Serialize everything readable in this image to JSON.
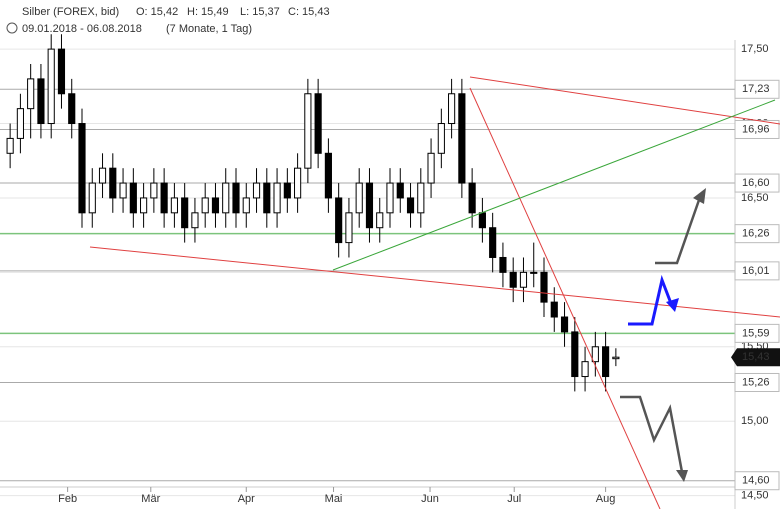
{
  "header": {
    "symbol": "Silber (FOREX, bid)",
    "quote": [
      "O: 15,42",
      "H: 15,49",
      "L: 15,37",
      "C: 15,43"
    ],
    "range": "09.01.2018 - 06.08.2018",
    "period": "(7 Monate, 1 Tag)"
  },
  "chart_data": {
    "type": "candlestick",
    "categories": [
      null,
      null,
      null,
      null,
      null,
      null,
      null,
      null,
      null,
      null,
      null,
      null,
      null,
      null,
      null,
      null,
      null,
      null,
      null,
      null,
      null,
      null,
      null,
      null,
      null,
      null,
      null,
      null,
      null,
      null,
      null,
      null,
      null,
      null,
      null,
      null,
      null,
      null,
      null,
      null,
      null,
      null,
      null,
      null,
      null,
      null,
      null,
      null,
      null,
      null,
      null,
      null,
      null,
      null,
      null,
      null,
      null,
      null,
      null,
      null
    ],
    "open": [
      16.8,
      16.9,
      17.1,
      17.3,
      17.0,
      17.5,
      17.2,
      17.0,
      16.4,
      16.6,
      16.7,
      16.5,
      16.6,
      16.4,
      16.5,
      16.6,
      16.4,
      16.5,
      16.3,
      16.4,
      16.5,
      16.4,
      16.6,
      16.4,
      16.5,
      16.6,
      16.4,
      16.6,
      16.5,
      16.7,
      17.2,
      16.8,
      16.5,
      16.2,
      16.4,
      16.6,
      16.3,
      16.4,
      16.6,
      16.5,
      16.4,
      16.6,
      16.8,
      17.0,
      17.2,
      16.6,
      16.4,
      16.3,
      16.1,
      16.0,
      15.9,
      16.0,
      16.0,
      15.8,
      15.7,
      15.6,
      15.3,
      15.4,
      15.5,
      15.42
    ],
    "high": [
      17.0,
      17.2,
      17.4,
      17.4,
      17.6,
      17.6,
      17.3,
      17.1,
      16.7,
      16.8,
      16.8,
      16.7,
      16.7,
      16.6,
      16.7,
      16.7,
      16.6,
      16.6,
      16.5,
      16.6,
      16.6,
      16.7,
      16.7,
      16.6,
      16.7,
      16.7,
      16.7,
      16.7,
      16.8,
      17.3,
      17.3,
      16.9,
      16.6,
      16.5,
      16.7,
      16.7,
      16.5,
      16.7,
      16.7,
      16.6,
      16.7,
      16.9,
      17.1,
      17.3,
      17.3,
      16.7,
      16.5,
      16.4,
      16.2,
      16.1,
      16.1,
      16.2,
      16.1,
      15.9,
      15.8,
      15.7,
      15.5,
      15.6,
      15.6,
      15.49
    ],
    "low": [
      16.7,
      16.8,
      16.9,
      16.9,
      16.9,
      17.1,
      16.9,
      16.3,
      16.3,
      16.5,
      16.4,
      16.4,
      16.3,
      16.3,
      16.4,
      16.3,
      16.3,
      16.2,
      16.2,
      16.3,
      16.3,
      16.3,
      16.3,
      16.3,
      16.4,
      16.3,
      16.3,
      16.4,
      16.4,
      16.6,
      16.7,
      16.4,
      16.1,
      16.1,
      16.3,
      16.2,
      16.2,
      16.3,
      16.4,
      16.3,
      16.3,
      16.5,
      16.7,
      16.9,
      16.5,
      16.3,
      16.2,
      16.0,
      15.9,
      15.8,
      15.8,
      15.9,
      15.7,
      15.6,
      15.5,
      15.2,
      15.2,
      15.3,
      15.2,
      15.37
    ],
    "close": [
      16.9,
      17.1,
      17.3,
      17.0,
      17.5,
      17.2,
      17.0,
      16.4,
      16.6,
      16.7,
      16.5,
      16.6,
      16.4,
      16.5,
      16.6,
      16.4,
      16.5,
      16.3,
      16.4,
      16.5,
      16.4,
      16.6,
      16.4,
      16.5,
      16.6,
      16.4,
      16.6,
      16.5,
      16.7,
      17.2,
      16.8,
      16.5,
      16.2,
      16.4,
      16.6,
      16.3,
      16.4,
      16.6,
      16.5,
      16.4,
      16.6,
      16.8,
      17.0,
      17.2,
      16.6,
      16.4,
      16.3,
      16.1,
      16.0,
      15.9,
      16.0,
      16.0,
      15.8,
      15.7,
      15.6,
      15.3,
      15.4,
      15.5,
      15.3,
      15.43
    ],
    "xlim": [
      0,
      60
    ],
    "xticks": [
      {
        "value": 6.1,
        "label": "Feb"
      },
      {
        "value": 14.2,
        "label": "Mär"
      },
      {
        "value": 23.5,
        "label": "Apr"
      },
      {
        "value": 32,
        "label": "Mai"
      },
      {
        "value": 41.4,
        "label": "Jun"
      },
      {
        "value": 49.6,
        "label": "Jul"
      },
      {
        "value": 58.5,
        "label": "Aug"
      }
    ],
    "ylim": [
      14.41,
      17.83
    ],
    "yticks": [
      {
        "value": 14.5,
        "label": "14,50"
      },
      {
        "value": 15,
        "label": "15,00"
      },
      {
        "value": 15.5,
        "label": "15,50"
      },
      {
        "value": 16,
        "label": "16,00"
      },
      {
        "value": 16.5,
        "label": "16,50"
      },
      {
        "value": 17,
        "label": "17,00"
      },
      {
        "value": 17.5,
        "label": "17,50"
      }
    ],
    "levels": [
      {
        "value": 17.23,
        "label": "17,23",
        "color": "#aaaaaa"
      },
      {
        "value": 16.96,
        "label": "16,96",
        "color": "#aaaaaa"
      },
      {
        "value": 16.6,
        "label": "16,60",
        "color": "#aaaaaa"
      },
      {
        "value": 16.26,
        "label": "16,26",
        "color": "#7cc47c"
      },
      {
        "value": 16.01,
        "label": "16,01",
        "color": "#aaaaaa"
      },
      {
        "value": 15.59,
        "label": "15,59",
        "color": "#7cc47c"
      },
      {
        "value": 15.26,
        "label": "15,26",
        "color": "#aaaaaa"
      },
      {
        "value": 14.6,
        "label": "14,60",
        "color": "#aaaaaa"
      }
    ],
    "last": {
      "value": 15.43,
      "label": "15,43"
    }
  }
}
